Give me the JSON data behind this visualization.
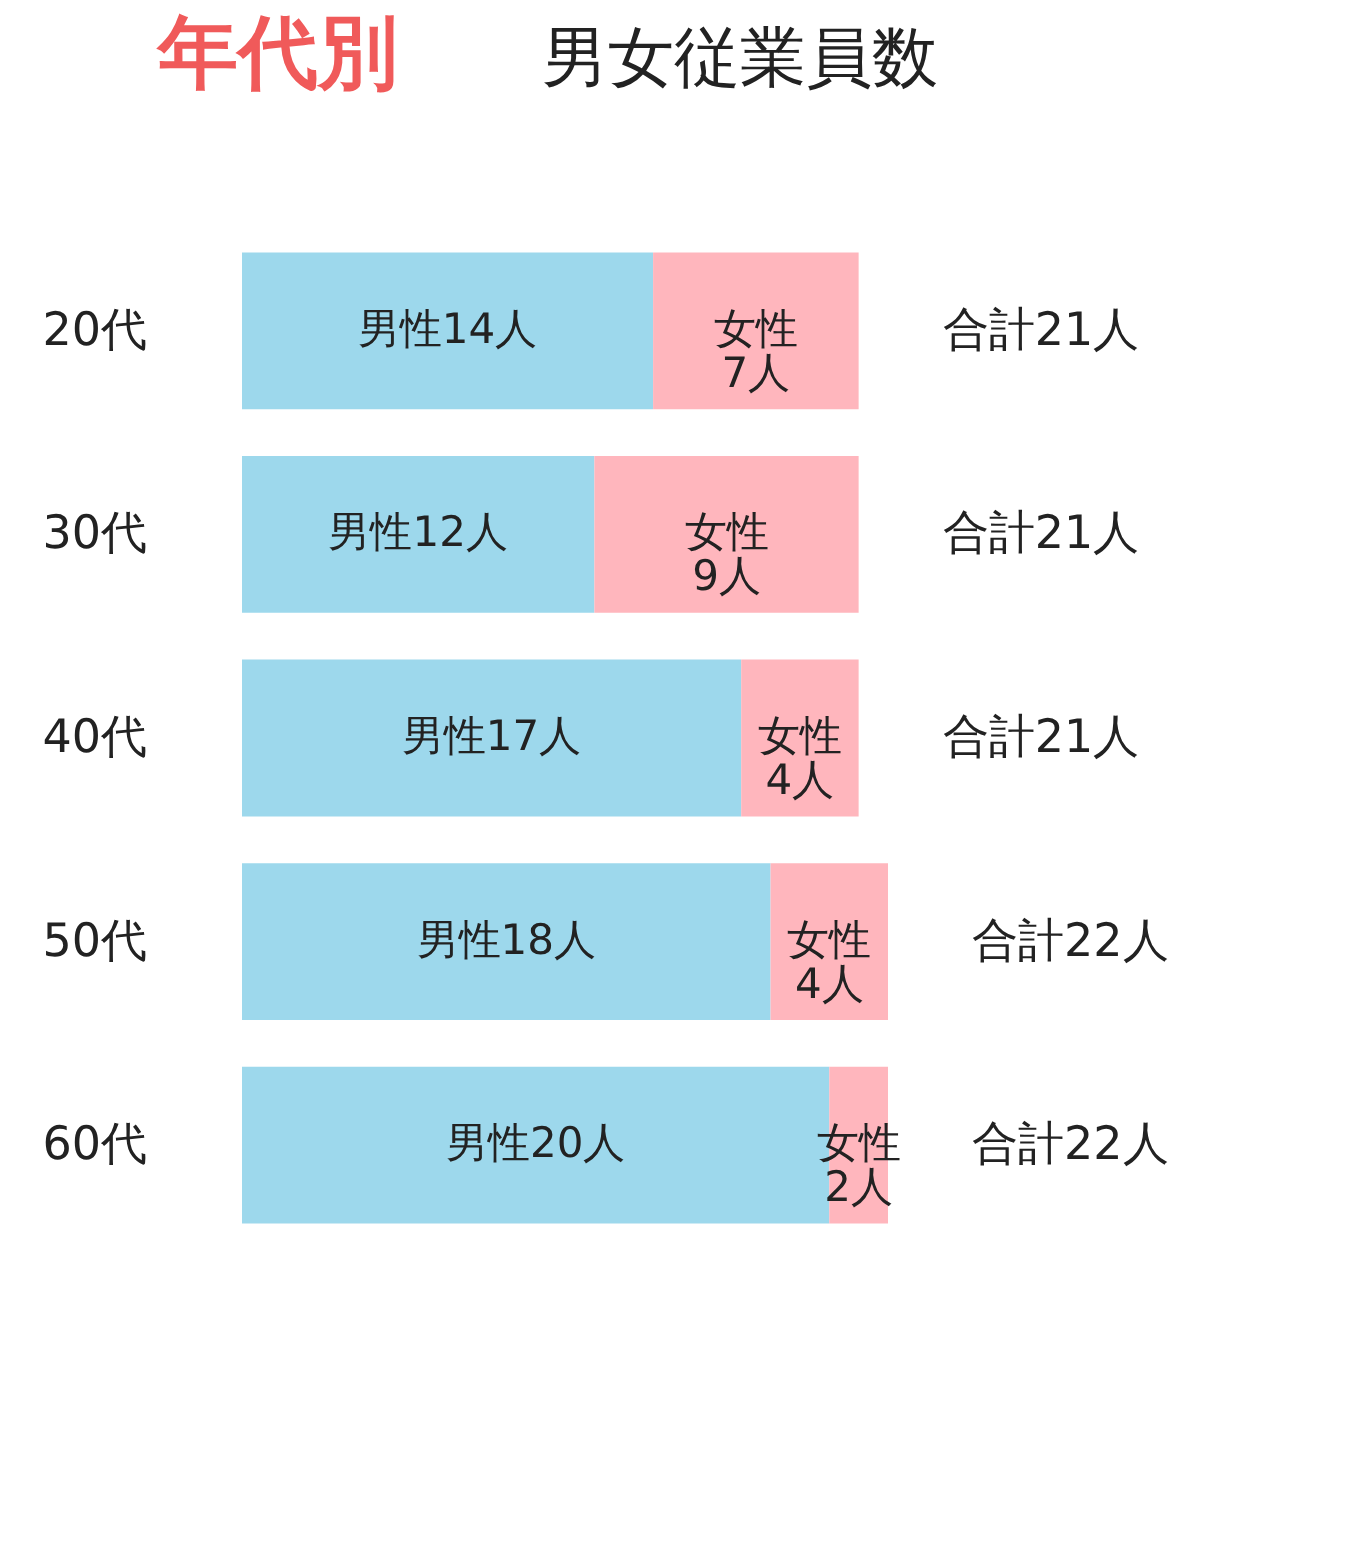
{
  "chart_data": {
    "type": "bar",
    "orientation": "horizontal",
    "stacked": true,
    "title": "年代別 男女従業員数",
    "categories": [
      "20代",
      "30代",
      "40代",
      "50代",
      "60代"
    ],
    "series": [
      {
        "color": "#9dd8ec",
        "values": [
          14,
          12,
          17,
          18,
          20
        ],
        "value_labels": [
          "男性14人",
          "男性12人",
          "男性17人",
          "男性18人",
          "男性20人"
        ]
      },
      {
        "color": "#ffb6bd",
        "values": [
          7,
          9,
          4,
          4,
          2
        ],
        "value_labels": [
          "女性\n7人",
          "女性\n9人",
          "女性\n4人",
          "女性\n4人",
          "女性\n2人"
        ]
      }
    ],
    "totals": [
      "合計21人",
      "合計21人",
      "合計21人",
      "合計22人",
      "合計22人"
    ],
    "grid": false,
    "tick_labels": "y"
  }
}
